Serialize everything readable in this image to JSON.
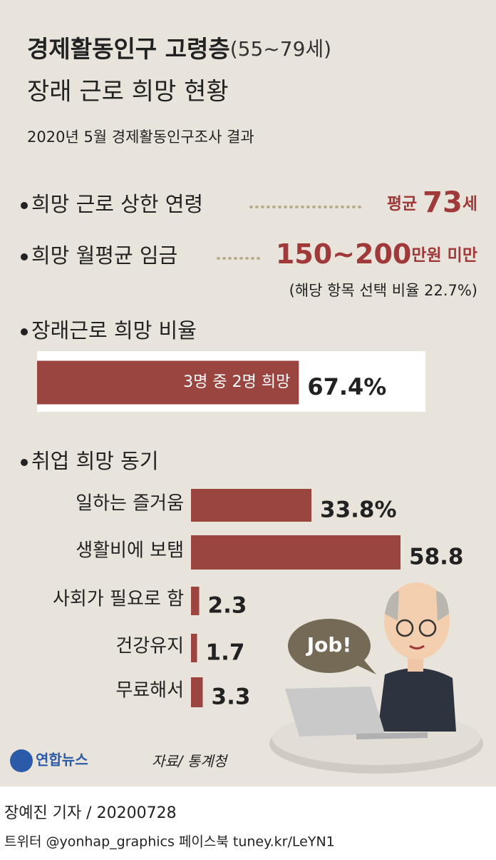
{
  "header": {
    "title": "경제활동인구 고령층",
    "title_suffix": "(55~79세)",
    "subtitle": "장래 근로 희망 현황",
    "survey": "2020년 5월 경제활동인구조사 결과"
  },
  "facts": [
    {
      "label": "희망 근로 상한 연령",
      "prefix": "평균",
      "value": "73",
      "unit": "세"
    },
    {
      "label": "희망 월평균 임금",
      "value": "150~200",
      "unit": "만원 미만",
      "note": "(해당 항목 선택 비율 22.7%)"
    }
  ],
  "chart_data": [
    {
      "type": "bar",
      "title": "장래근로 희망 비율",
      "annotation": "3명 중 2명 희망",
      "values": [
        67.4
      ],
      "value_labels": [
        "67.4%"
      ],
      "color": "#9b4541"
    },
    {
      "type": "bar",
      "title": "취업 희망 동기",
      "categories": [
        "일하는 즐거움",
        "생활비에 보탬",
        "사회가 필요로 함",
        "건강유지",
        "무료해서"
      ],
      "values": [
        33.8,
        58.8,
        2.3,
        1.7,
        3.3
      ],
      "value_labels": [
        "33.8%",
        "58.8",
        "2.3",
        "1.7",
        "3.3"
      ],
      "color": "#9b4541"
    }
  ],
  "illustration": {
    "bubble": "Job!"
  },
  "footer": {
    "logo": "연합뉴스",
    "source": "자료/ 통계청",
    "byline": "장예진 기자 / 20200728",
    "social": "트위터 @yonhap_graphics  페이스북 tuney.kr/LeYN1"
  }
}
